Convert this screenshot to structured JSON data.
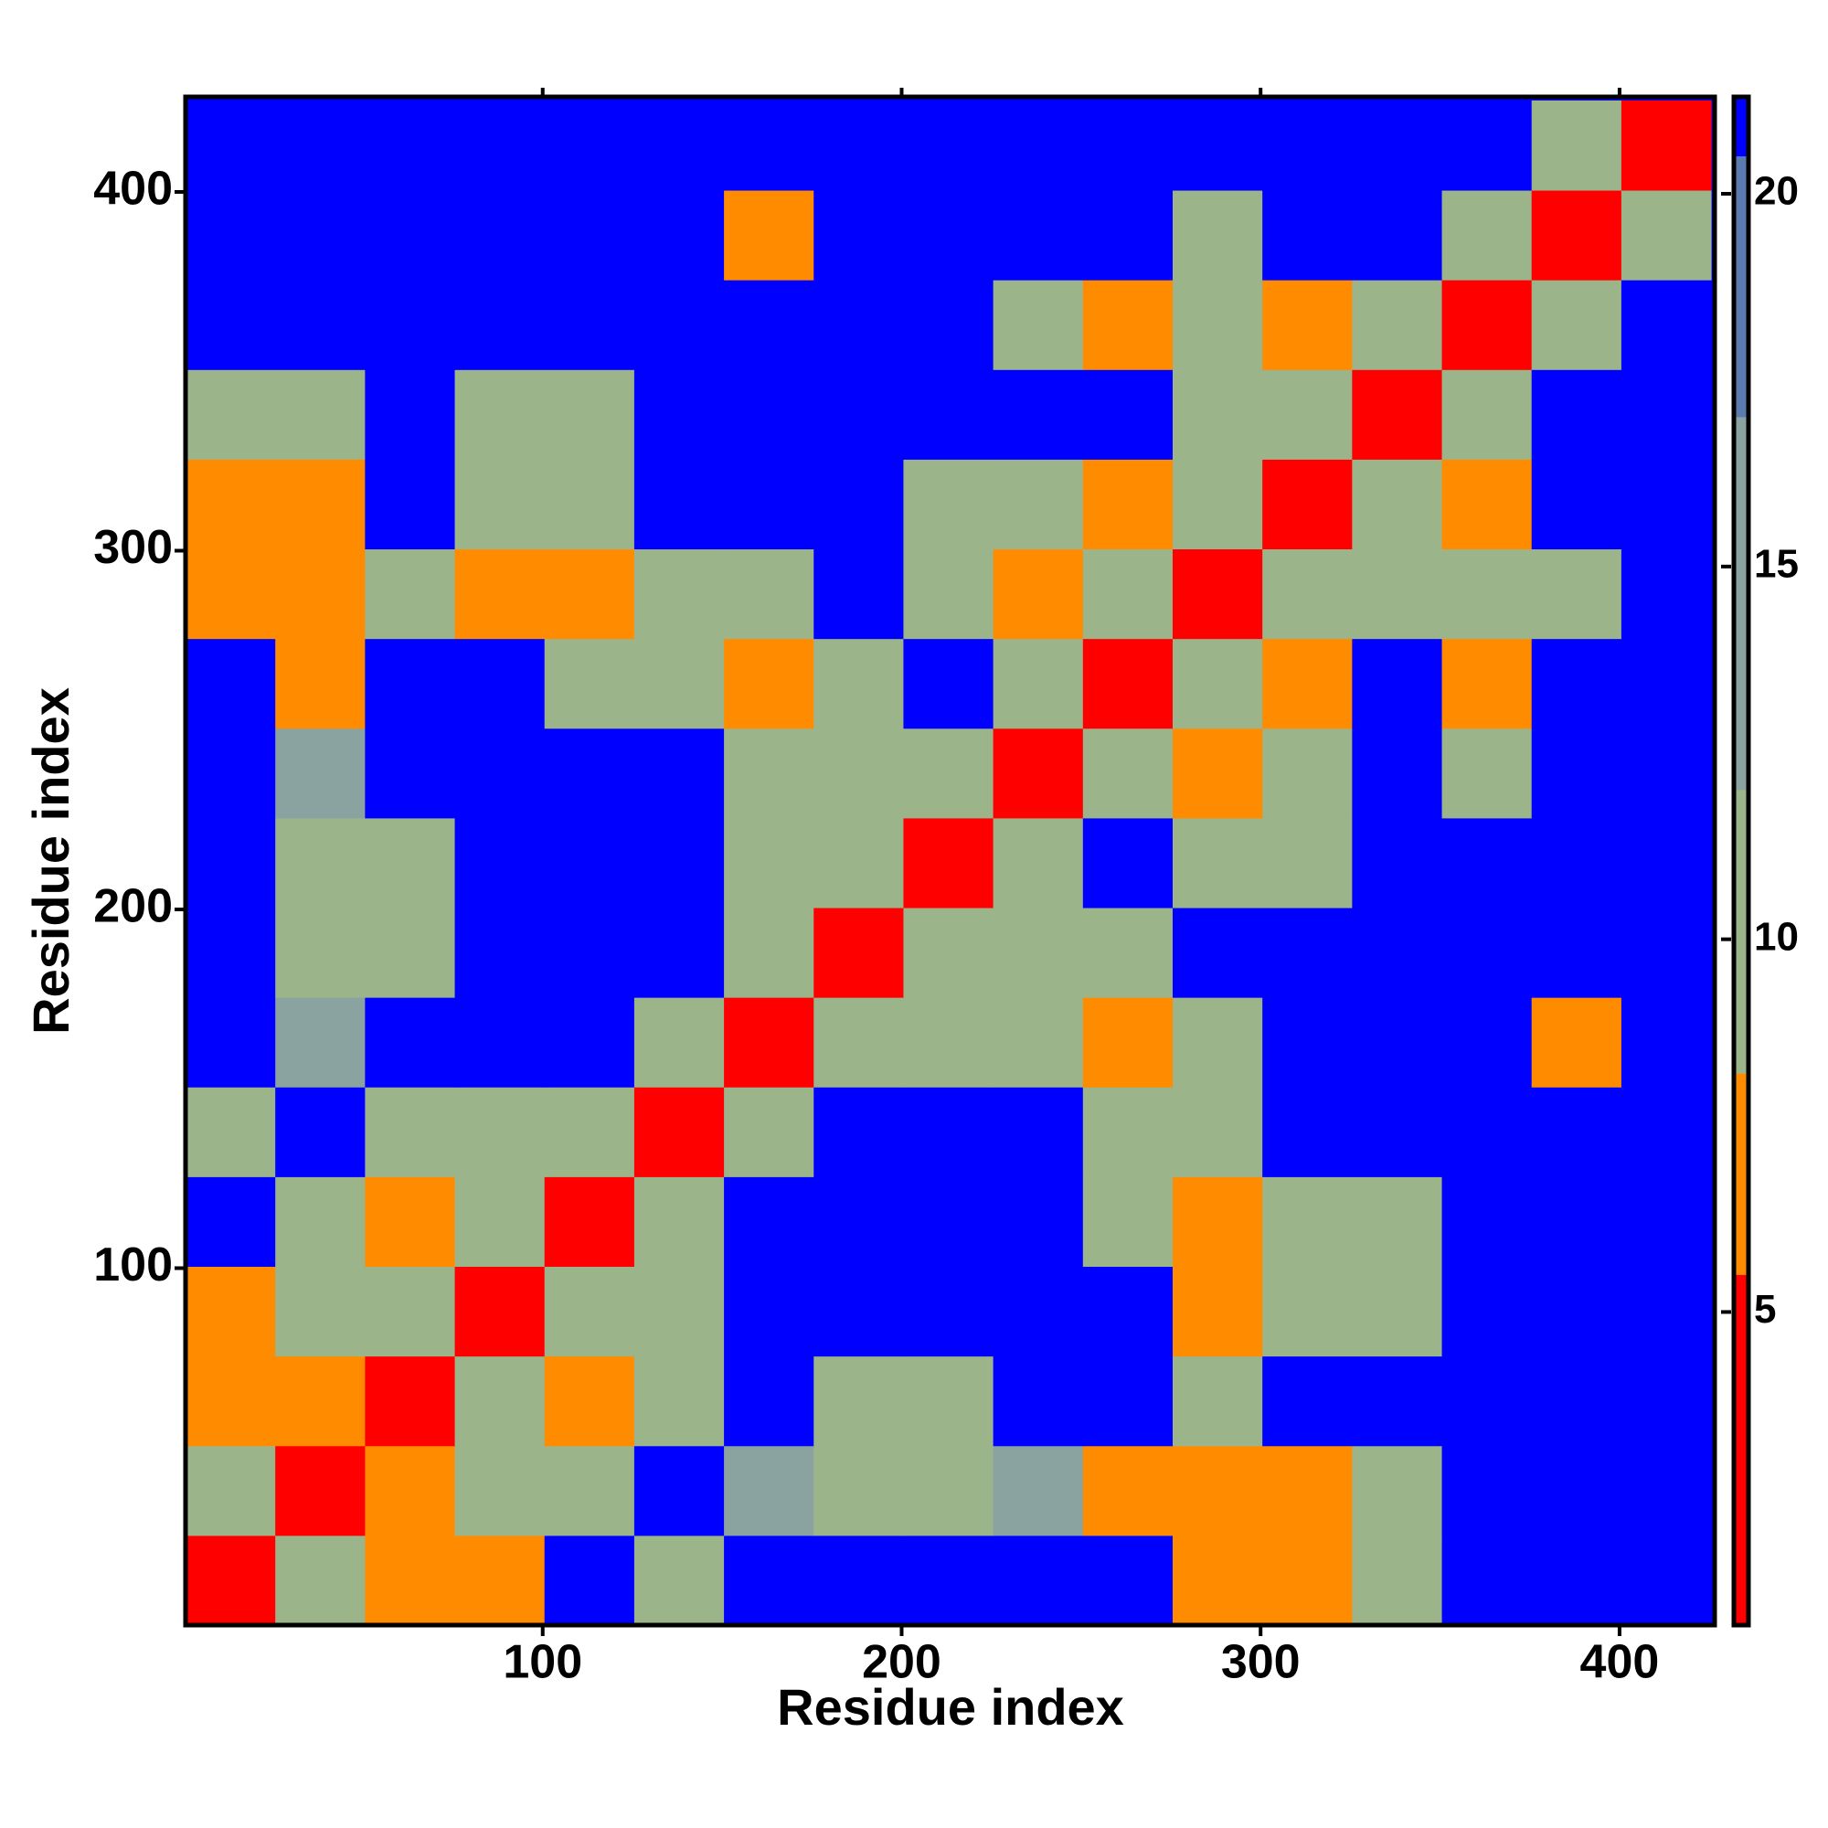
{
  "chart_data": {
    "type": "heatmap",
    "x_label": "Residue index",
    "y_label": "Residue index",
    "x": [
      13,
      38,
      63,
      88,
      113,
      138,
      163,
      188,
      213,
      238,
      263,
      288,
      313,
      338,
      363,
      388,
      413
    ],
    "y": [
      13,
      38,
      63,
      88,
      113,
      138,
      163,
      188,
      213,
      238,
      263,
      288,
      313,
      338,
      363,
      388,
      413
    ],
    "z": [
      [
        3,
        9,
        8,
        8,
        21,
        12,
        21,
        21,
        21,
        21,
        21,
        7,
        6,
        10,
        21,
        21,
        21
      ],
      [
        9,
        3,
        7,
        10,
        9,
        21,
        13,
        12,
        10,
        13,
        7,
        7,
        6,
        10,
        21,
        21,
        21
      ],
      [
        8,
        7,
        3,
        9,
        8,
        12,
        21,
        12,
        10,
        21,
        21,
        9,
        21,
        21,
        21,
        21,
        21
      ],
      [
        8,
        10,
        9,
        3,
        9,
        9,
        21,
        21,
        21,
        21,
        21,
        7,
        9,
        11,
        21,
        21,
        21
      ],
      [
        21,
        9,
        8,
        9,
        3,
        9,
        21,
        21,
        21,
        21,
        12,
        7,
        10,
        11,
        21,
        21,
        21
      ],
      [
        12,
        21,
        12,
        9,
        9,
        3,
        9,
        21,
        21,
        21,
        12,
        9,
        21,
        21,
        21,
        21,
        21
      ],
      [
        21,
        13,
        21,
        21,
        21,
        9,
        3,
        9,
        9,
        9,
        8,
        10,
        21,
        21,
        21,
        7,
        21
      ],
      [
        21,
        12,
        12,
        21,
        21,
        21,
        9,
        3,
        9,
        9,
        11,
        21,
        21,
        21,
        21,
        21,
        21
      ],
      [
        21,
        10,
        10,
        21,
        21,
        21,
        9,
        9,
        3,
        9,
        21,
        11,
        12,
        21,
        21,
        21,
        21
      ],
      [
        21,
        13,
        21,
        21,
        21,
        21,
        9,
        9,
        9,
        3,
        9,
        8,
        12,
        21,
        9,
        21,
        21
      ],
      [
        21,
        7,
        21,
        21,
        12,
        12,
        8,
        11,
        21,
        9,
        3,
        9,
        8,
        21,
        8,
        21,
        21
      ],
      [
        7,
        7,
        9,
        7,
        7,
        9,
        10,
        21,
        11,
        8,
        9,
        3,
        9,
        9,
        10,
        12,
        21
      ],
      [
        6,
        6,
        21,
        9,
        10,
        21,
        21,
        21,
        12,
        12,
        8,
        9,
        3,
        9,
        8,
        21,
        21
      ],
      [
        10,
        10,
        21,
        11,
        11,
        21,
        21,
        21,
        21,
        21,
        21,
        9,
        9,
        3,
        9,
        21,
        21
      ],
      [
        21,
        21,
        21,
        21,
        21,
        21,
        21,
        21,
        21,
        9,
        8,
        10,
        8,
        9,
        3,
        9,
        21
      ],
      [
        21,
        21,
        21,
        21,
        21,
        21,
        7,
        21,
        21,
        21,
        21,
        12,
        21,
        21,
        9,
        3,
        9
      ],
      [
        21,
        21,
        21,
        21,
        21,
        21,
        21,
        21,
        21,
        21,
        21,
        21,
        21,
        21,
        21,
        9,
        3
      ]
    ],
    "xlim": [
      0.5,
      426.5
    ],
    "ylim": [
      0.5,
      426.5
    ],
    "xticks": [
      100,
      200,
      300,
      400
    ],
    "yticks": [
      100,
      200,
      300,
      400
    ],
    "colorbar": {
      "lim": [
        0.8,
        21.3
      ],
      "ticks": [
        5,
        10,
        15,
        20
      ]
    },
    "colorscale": [
      [
        5.5,
        "#ff0000"
      ],
      [
        8.2,
        "#ff8c00"
      ],
      [
        12,
        "#9cb48a"
      ],
      [
        17,
        "#8aa3a0"
      ],
      [
        20.5,
        "#5b7bb0"
      ],
      [
        21.3,
        "#0000ff"
      ]
    ]
  }
}
